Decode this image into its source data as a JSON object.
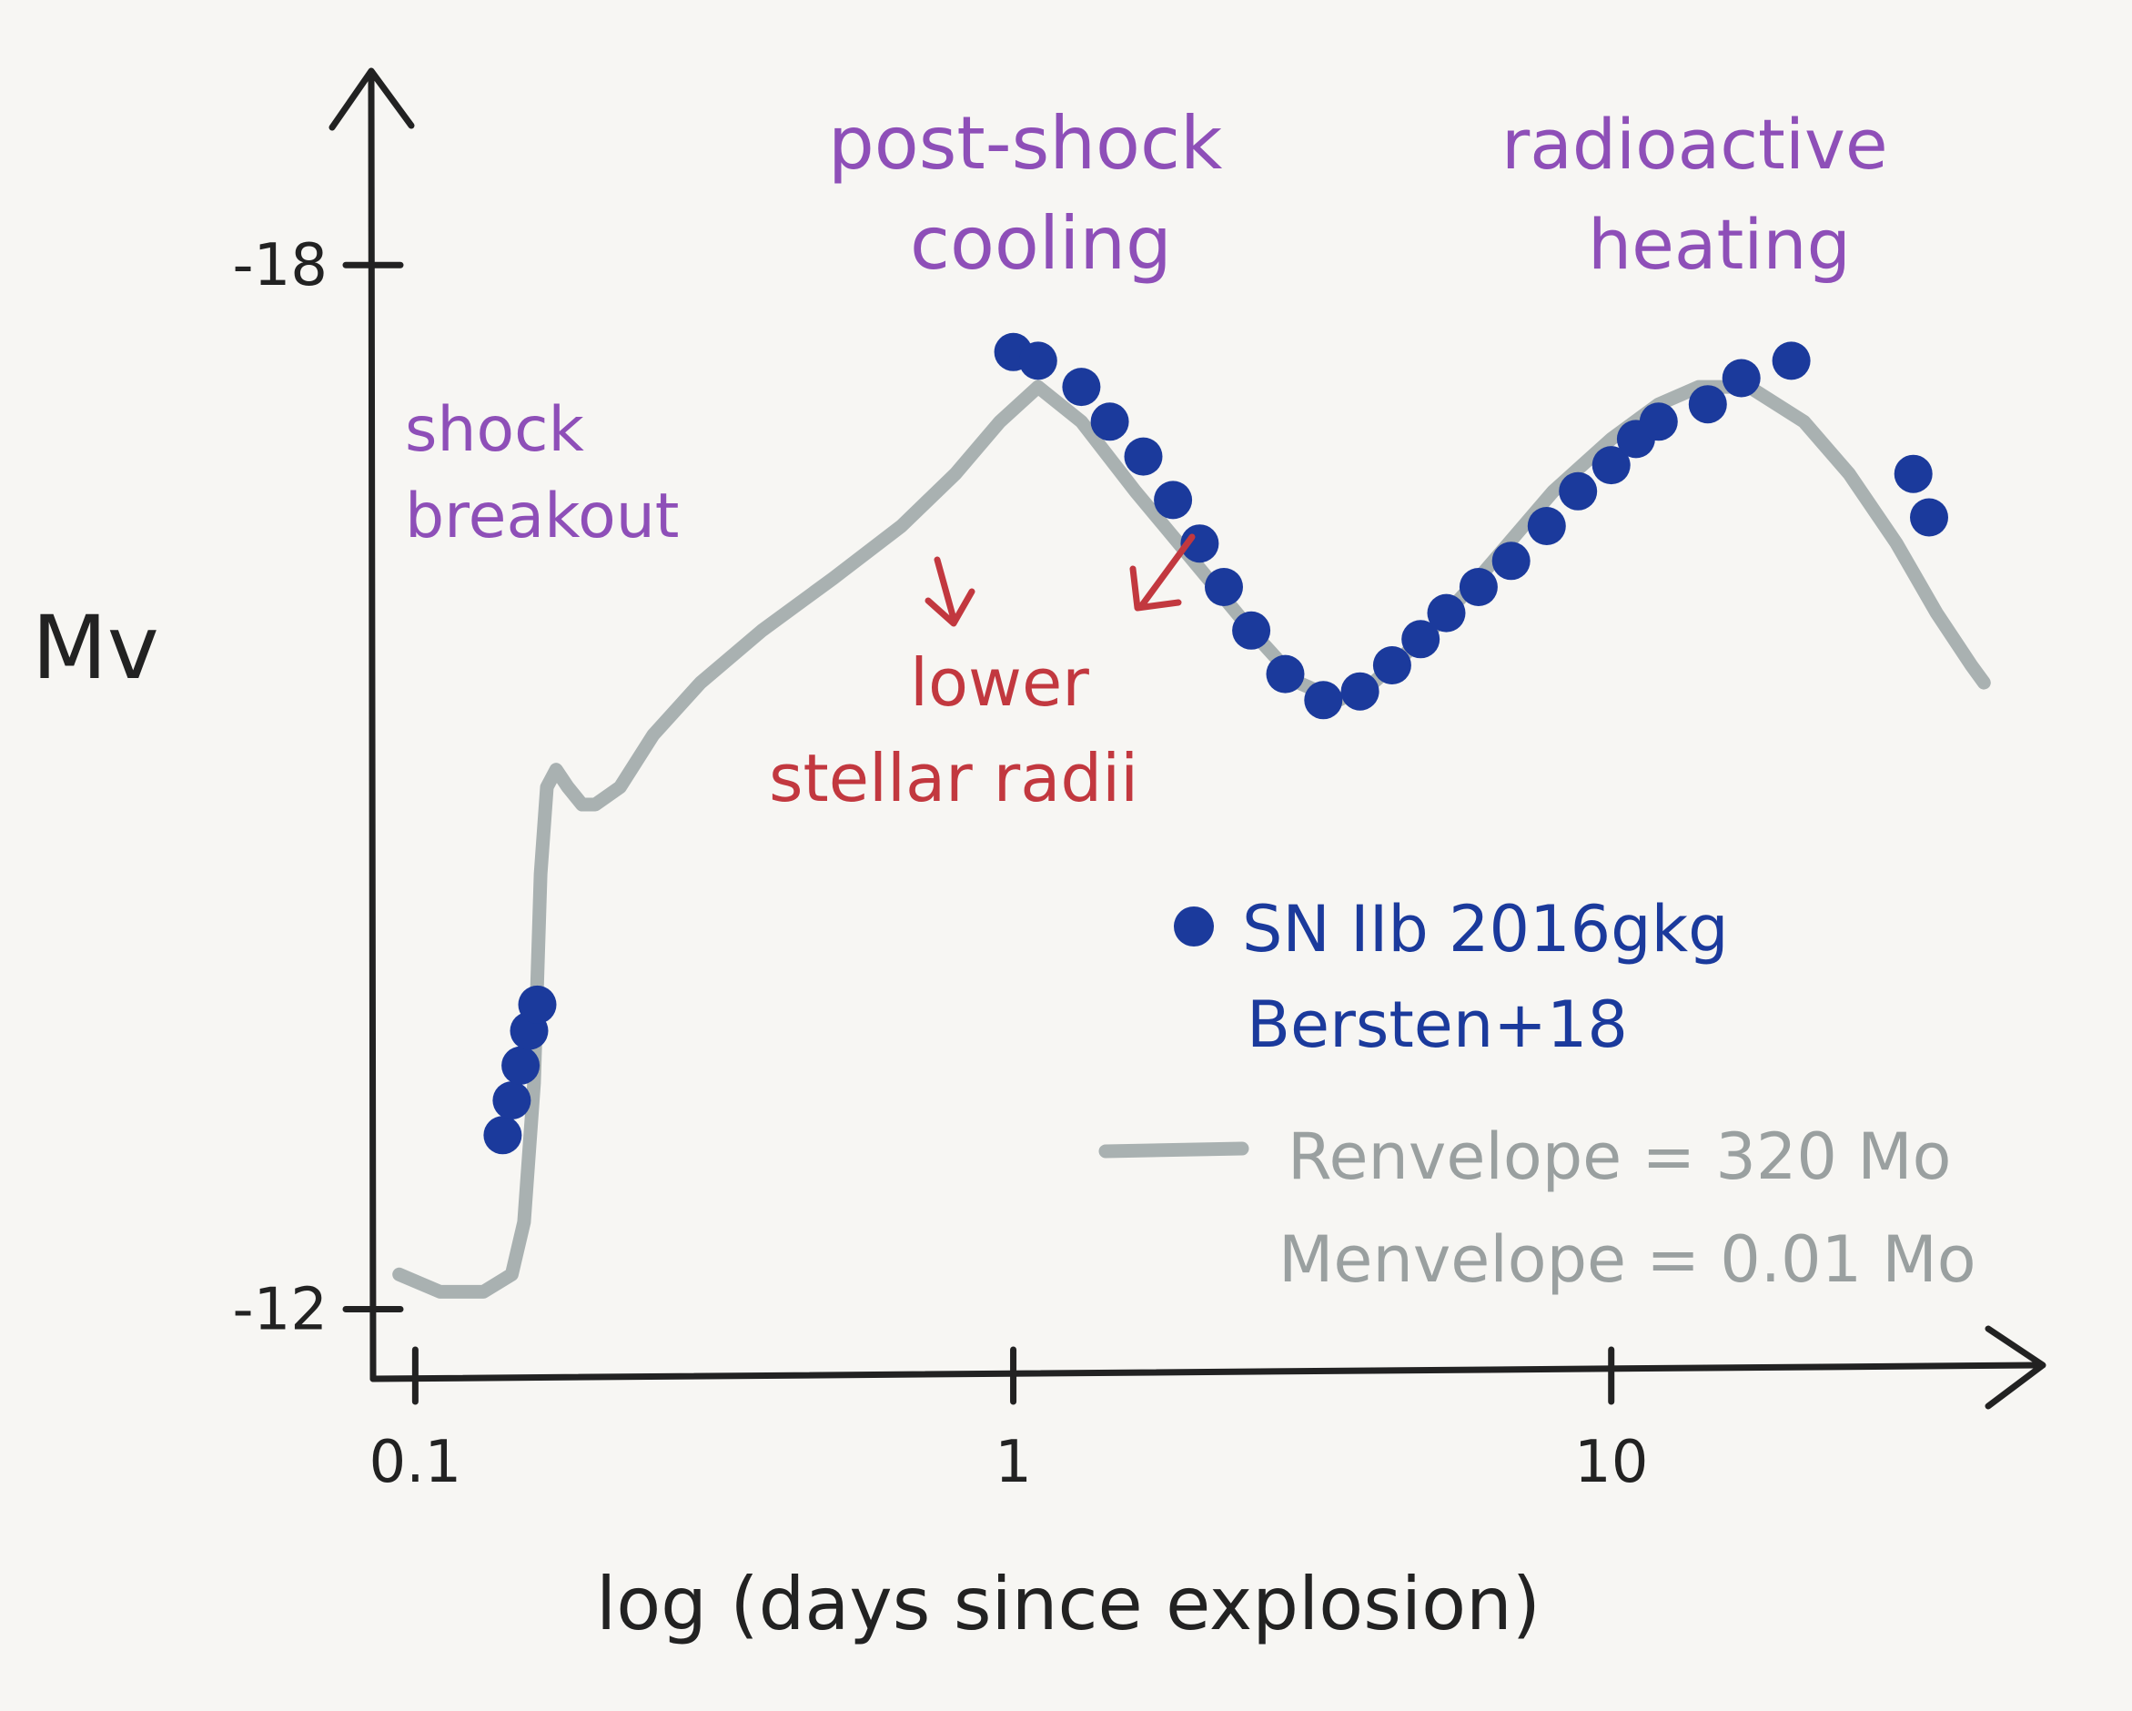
{
  "chart_data": {
    "type": "line",
    "xlabel": "log (days since explosion)",
    "ylabel": "Mv",
    "x_scale": "log",
    "xlim": [
      0.085,
      45
    ],
    "ylim": [
      -11.6,
      -19.0
    ],
    "x_ticks": [
      {
        "value": 0.1,
        "label": "0.1"
      },
      {
        "value": 1,
        "label": "1"
      },
      {
        "value": 10,
        "label": "10"
      }
    ],
    "y_ticks": [
      {
        "value": -18,
        "label": "-18"
      },
      {
        "value": -12,
        "label": "-12"
      }
    ],
    "grid": false,
    "colors": {
      "model": "#a9b1b1",
      "data": "#1b3a9c",
      "phase_label": "#8e4fb8",
      "arrow_label": "#c2383f",
      "axis": "#222222",
      "legend_model": "#9aa0a0"
    },
    "series": [
      {
        "name": "Renvelope = 320 Mo  Menvelope = 0.01 Mo",
        "kind": "line",
        "x": [
          0.094,
          0.11,
          0.13,
          0.145,
          0.152,
          0.158,
          0.162,
          0.166,
          0.172,
          0.18,
          0.19,
          0.2,
          0.22,
          0.25,
          0.3,
          0.38,
          0.5,
          0.65,
          0.8,
          0.95,
          1.1,
          1.3,
          1.6,
          2.0,
          2.5,
          3.0,
          3.5,
          4.0,
          5.0,
          6.0,
          8.0,
          10.0,
          12.0,
          14.0,
          17.0,
          21.0,
          25.0,
          30.0,
          35.0,
          40.0,
          42.0
        ],
        "y": [
          -12.2,
          -12.1,
          -12.1,
          -12.2,
          -12.5,
          -13.3,
          -14.5,
          -15.0,
          -15.1,
          -15.0,
          -14.9,
          -14.9,
          -15.0,
          -15.3,
          -15.6,
          -15.9,
          -16.2,
          -16.5,
          -16.8,
          -17.1,
          -17.3,
          -17.1,
          -16.7,
          -16.3,
          -15.9,
          -15.6,
          -15.5,
          -15.6,
          -15.9,
          -16.2,
          -16.7,
          -17.0,
          -17.2,
          -17.3,
          -17.3,
          -17.1,
          -16.8,
          -16.4,
          -16.0,
          -15.7,
          -15.6
        ]
      },
      {
        "name": "SN IIb 2016gkg Bersten+18",
        "kind": "scatter",
        "x": [
          0.14,
          0.145,
          0.15,
          0.155,
          0.16,
          1.0,
          1.1,
          1.3,
          1.45,
          1.65,
          1.85,
          2.05,
          2.25,
          2.5,
          2.85,
          3.3,
          3.8,
          4.3,
          4.8,
          5.3,
          6.0,
          6.8,
          7.8,
          8.8,
          10.0,
          11.0,
          12.0,
          14.5,
          16.5,
          20.0,
          32.0,
          34.0
        ],
        "y": [
          -13.0,
          -13.2,
          -13.4,
          -13.6,
          -13.75,
          -17.5,
          -17.45,
          -17.3,
          -17.1,
          -16.9,
          -16.65,
          -16.4,
          -16.15,
          -15.9,
          -15.65,
          -15.5,
          -15.55,
          -15.7,
          -15.85,
          -16.0,
          -16.15,
          -16.3,
          -16.5,
          -16.7,
          -16.85,
          -17.0,
          -17.1,
          -17.2,
          -17.35,
          -17.45,
          -16.8,
          -16.55
        ]
      }
    ],
    "annotations": {
      "shock_breakout": [
        "shock",
        "breakout"
      ],
      "post_shock_cooling": [
        "post-shock",
        "cooling"
      ],
      "radioactive_heating": [
        "radioactive",
        "heating"
      ],
      "lower_radii": [
        "lower",
        "stellar radii"
      ]
    },
    "legend": {
      "data_line1": "SN IIb  2016gkg",
      "data_line2": "Bersten+18",
      "model_line1": "Renvelope = 320 Mo",
      "model_line2": "Menvelope = 0.01 Mo"
    }
  }
}
